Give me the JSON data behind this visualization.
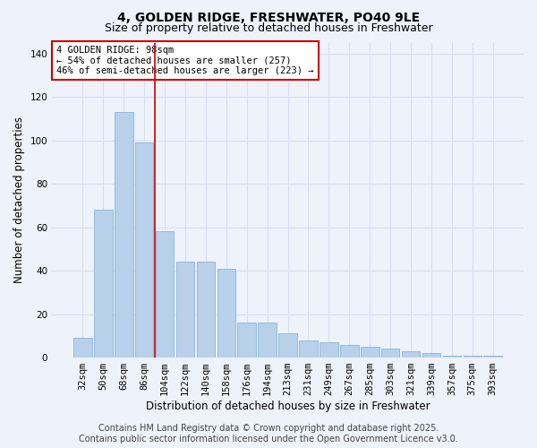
{
  "title1": "4, GOLDEN RIDGE, FRESHWATER, PO40 9LE",
  "title2": "Size of property relative to detached houses in Freshwater",
  "xlabel": "Distribution of detached houses by size in Freshwater",
  "ylabel": "Number of detached properties",
  "bar_labels": [
    "32sqm",
    "50sqm",
    "68sqm",
    "86sqm",
    "104sqm",
    "122sqm",
    "140sqm",
    "158sqm",
    "176sqm",
    "194sqm",
    "213sqm",
    "231sqm",
    "249sqm",
    "267sqm",
    "285sqm",
    "303sqm",
    "321sqm",
    "339sqm",
    "357sqm",
    "375sqm",
    "393sqm"
  ],
  "bar_values": [
    9,
    68,
    113,
    99,
    58,
    44,
    44,
    41,
    16,
    16,
    11,
    8,
    7,
    6,
    5,
    4,
    3,
    2,
    1,
    1,
    1
  ],
  "bar_color": "#b8d0ea",
  "bar_edge_color": "#7aafd4",
  "ylim": [
    0,
    145
  ],
  "yticks": [
    0,
    20,
    40,
    60,
    80,
    100,
    120,
    140
  ],
  "vline_x": 3.5,
  "annotation_line1": "4 GOLDEN RIDGE: 98sqm",
  "annotation_line2": "← 54% of detached houses are smaller (257)",
  "annotation_line3": "46% of semi-detached houses are larger (223) →",
  "annotation_box_color": "#ffffff",
  "annotation_box_edge_color": "#cc0000",
  "vline_color": "#cc0000",
  "footer1": "Contains HM Land Registry data © Crown copyright and database right 2025.",
  "footer2": "Contains public sector information licensed under the Open Government Licence v3.0.",
  "background_color": "#eef2fb",
  "grid_color": "#d8dff0",
  "title_fontsize": 10,
  "subtitle_fontsize": 9,
  "axis_label_fontsize": 8.5,
  "tick_fontsize": 7.5,
  "annotation_fontsize": 7.5,
  "footer_fontsize": 7
}
